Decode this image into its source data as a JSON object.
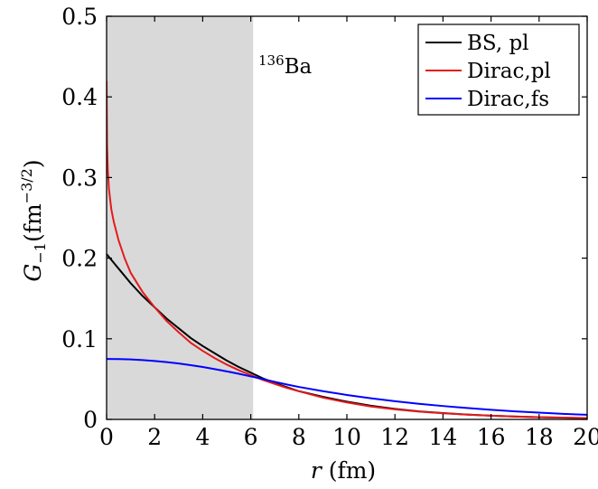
{
  "chart_data": {
    "type": "line",
    "xlim": [
      0,
      20
    ],
    "ylim": [
      0,
      0.5
    ],
    "xticks": [
      0,
      2,
      4,
      6,
      8,
      10,
      12,
      14,
      16,
      18,
      20
    ],
    "yticks": [
      0,
      0.1,
      0.2,
      0.3,
      0.4,
      0.5
    ],
    "xtick_labels": [
      "0",
      "2",
      "4",
      "6",
      "8",
      "10",
      "12",
      "14",
      "16",
      "18",
      "20"
    ],
    "ytick_labels": [
      "0",
      "0.1",
      "0.2",
      "0.3",
      "0.4",
      "0.5"
    ],
    "xlabel": {
      "var": "r",
      "unit": " (fm)"
    },
    "ylabel": {
      "main": "G",
      "sub": "−1",
      "unit_pre": "(fm",
      "unit_sup": "−3/2",
      "unit_post": ")"
    },
    "annotation": {
      "sup": "136",
      "text": "Ba"
    },
    "shaded_region": {
      "x0": 0,
      "x1": 6.1,
      "color": "#d9d9d9"
    },
    "legend_position": "top-right",
    "grid": false,
    "series": [
      {
        "name": "BS, pl",
        "color": "#000000",
        "x": [
          0,
          0.5,
          1,
          1.5,
          2,
          2.5,
          3,
          3.5,
          4,
          4.5,
          5,
          5.5,
          6,
          6.5,
          7,
          7.5,
          8,
          9,
          10,
          11,
          12,
          13,
          14,
          15,
          16,
          17,
          18,
          19,
          20
        ],
        "y": [
          0.205,
          0.187,
          0.169,
          0.153,
          0.139,
          0.125,
          0.113,
          0.101,
          0.091,
          0.082,
          0.073,
          0.065,
          0.058,
          0.051,
          0.045,
          0.04,
          0.035,
          0.028,
          0.022,
          0.017,
          0.013,
          0.01,
          0.0078,
          0.006,
          0.0046,
          0.0035,
          0.0027,
          0.0021,
          0.0016
        ]
      },
      {
        "name": "Dirac,pl",
        "color": "#e41a1c",
        "x": [
          0,
          0.02,
          0.05,
          0.1,
          0.2,
          0.3,
          0.5,
          0.75,
          1,
          1.5,
          2,
          2.5,
          3,
          3.5,
          4,
          4.5,
          5,
          5.5,
          6,
          6.5,
          7,
          7.5,
          8,
          9,
          10,
          11,
          12,
          13,
          14,
          15,
          16,
          17,
          18,
          19,
          20
        ],
        "y": [
          0.42,
          0.34,
          0.31,
          0.285,
          0.26,
          0.245,
          0.222,
          0.2,
          0.182,
          0.158,
          0.139,
          0.122,
          0.108,
          0.095,
          0.085,
          0.076,
          0.068,
          0.061,
          0.055,
          0.049,
          0.044,
          0.039,
          0.035,
          0.027,
          0.021,
          0.016,
          0.0125,
          0.0097,
          0.0076,
          0.0059,
          0.0046,
          0.0036,
          0.0028,
          0.0022,
          0.0017
        ]
      },
      {
        "name": "Dirac,fs",
        "color": "#0000ff",
        "x": [
          0,
          0.5,
          1,
          1.5,
          2,
          2.5,
          3,
          3.5,
          4,
          4.5,
          5,
          5.5,
          6,
          6.5,
          7,
          7.5,
          8,
          9,
          10,
          11,
          12,
          13,
          14,
          15,
          16,
          17,
          18,
          19,
          20
        ],
        "y": [
          0.075,
          0.0748,
          0.0744,
          0.0736,
          0.0725,
          0.0711,
          0.0694,
          0.0673,
          0.065,
          0.0624,
          0.0596,
          0.0566,
          0.0533,
          0.05,
          0.0466,
          0.0433,
          0.0403,
          0.035,
          0.0303,
          0.0262,
          0.0226,
          0.0194,
          0.0166,
          0.0141,
          0.0119,
          0.01,
          0.0084,
          0.0069,
          0.0057
        ]
      }
    ]
  }
}
